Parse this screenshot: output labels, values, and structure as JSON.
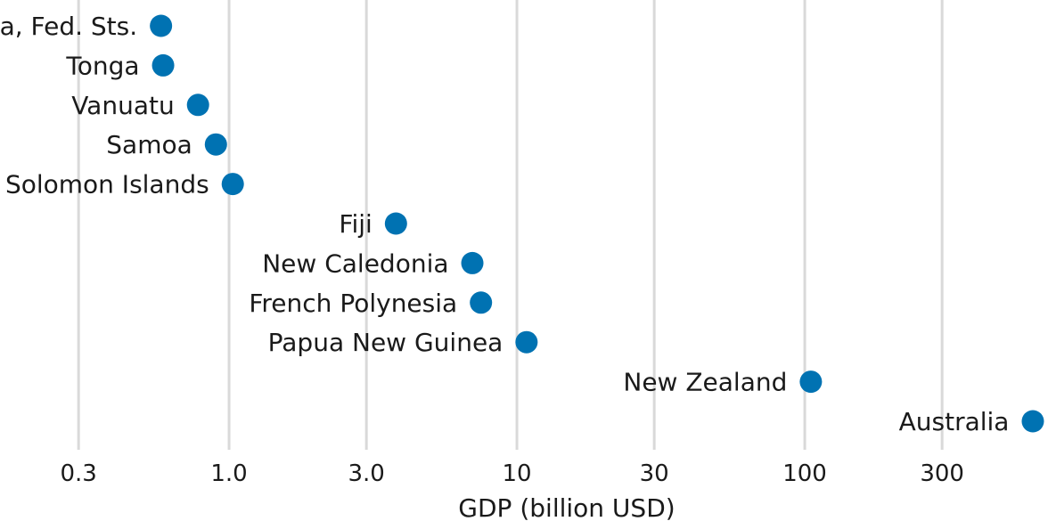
{
  "chart_data": {
    "type": "scatter",
    "title": "",
    "xlabel": "GDP (billion USD)",
    "ylabel": "",
    "x_scale": "log",
    "xlim": [
      0.16,
      700
    ],
    "x_ticks": [
      0.3,
      1,
      3,
      10,
      30,
      100,
      300
    ],
    "x_tick_labels": [
      "0.3",
      "1.0",
      "3.0",
      "10",
      "30",
      "100",
      "300"
    ],
    "grid": "vertical",
    "legend": "none",
    "point_color": "#0072b2",
    "points": [
      {
        "label": "Micronesia, Fed. Sts.",
        "gdp": 0.58
      },
      {
        "label": "Tonga",
        "gdp": 0.59
      },
      {
        "label": "Vanuatu",
        "gdp": 0.78
      },
      {
        "label": "Samoa",
        "gdp": 0.9
      },
      {
        "label": "Solomon Islands",
        "gdp": 1.03
      },
      {
        "label": "Fiji",
        "gdp": 3.8
      },
      {
        "label": "New Caledonia",
        "gdp": 7.0
      },
      {
        "label": "French Polynesia",
        "gdp": 7.5
      },
      {
        "label": "Papua New Guinea",
        "gdp": 10.8
      },
      {
        "label": "New Zealand",
        "gdp": 105
      },
      {
        "label": "Australia",
        "gdp": 620
      }
    ]
  }
}
